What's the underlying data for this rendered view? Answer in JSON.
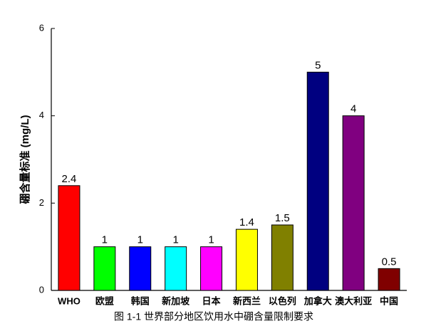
{
  "chart_data": {
    "type": "bar",
    "title": "图 1-1 世界部分地区饮用水中硼含量限制要求",
    "y_label": "硼含量标准 (mg/L)",
    "categories": [
      "WHO",
      "欧盟",
      "韩国",
      "新加坡",
      "日本",
      "新西兰",
      "以色列",
      "加拿大",
      "澳大利亚",
      "中国"
    ],
    "values": [
      2.4,
      1,
      1,
      1,
      1,
      1.4,
      1.5,
      5,
      4,
      0.5
    ],
    "colors": [
      "#ff0000",
      "#00ff00",
      "#0000ff",
      "#00ffff",
      "#ff00ff",
      "#ffff00",
      "#808000",
      "#000080",
      "#800080",
      "#800000"
    ],
    "ylim": [
      0,
      6
    ],
    "yticks": [
      0,
      2,
      4,
      6
    ],
    "grid": false
  }
}
